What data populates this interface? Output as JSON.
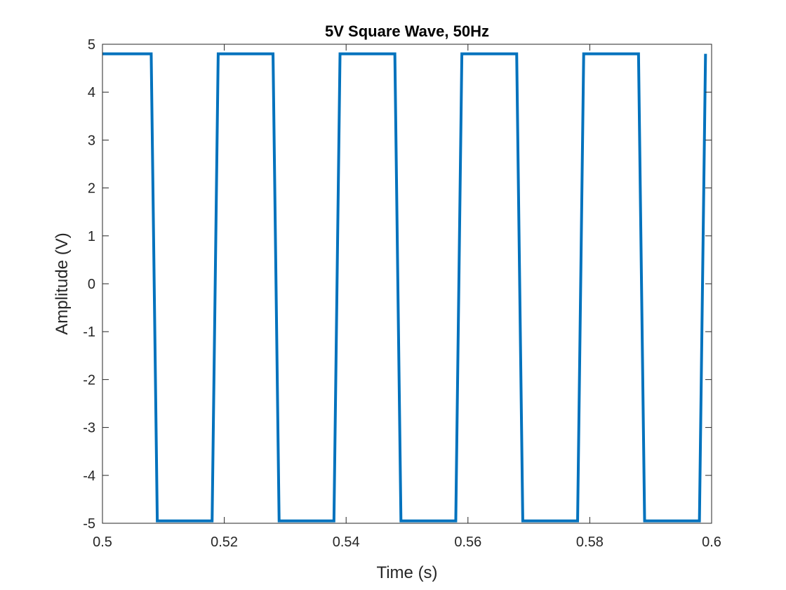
{
  "chart_data": {
    "type": "line",
    "title": "5V Square Wave, 50Hz",
    "xlabel": "Time (s)",
    "ylabel": "Amplitude (V)",
    "xlim": [
      0.5,
      0.6
    ],
    "ylim": [
      -5,
      5
    ],
    "xticks": [
      0.5,
      0.52,
      0.54,
      0.56,
      0.58,
      0.6
    ],
    "xtick_labels": [
      "0.5",
      "0.52",
      "0.54",
      "0.56",
      "0.58",
      "0.6"
    ],
    "yticks": [
      -5,
      -4,
      -3,
      -2,
      -1,
      0,
      1,
      2,
      3,
      4,
      5
    ],
    "ytick_labels": [
      "-5",
      "-4",
      "-3",
      "-2",
      "-1",
      "0",
      "1",
      "2",
      "3",
      "4",
      "5"
    ],
    "grid": false,
    "box": true,
    "series": [
      {
        "color": "#0072BD",
        "x": [
          0.5,
          0.508,
          0.509,
          0.518,
          0.519,
          0.528,
          0.529,
          0.538,
          0.539,
          0.548,
          0.549,
          0.558,
          0.559,
          0.568,
          0.569,
          0.578,
          0.579,
          0.588,
          0.589,
          0.598,
          0.599
        ],
        "y": [
          4.8,
          4.8,
          -4.95,
          -4.95,
          4.8,
          4.8,
          -4.95,
          -4.95,
          4.8,
          4.8,
          -4.95,
          -4.95,
          4.8,
          4.8,
          -4.95,
          -4.95,
          4.8,
          4.8,
          -4.95,
          -4.95,
          4.8
        ]
      }
    ]
  }
}
